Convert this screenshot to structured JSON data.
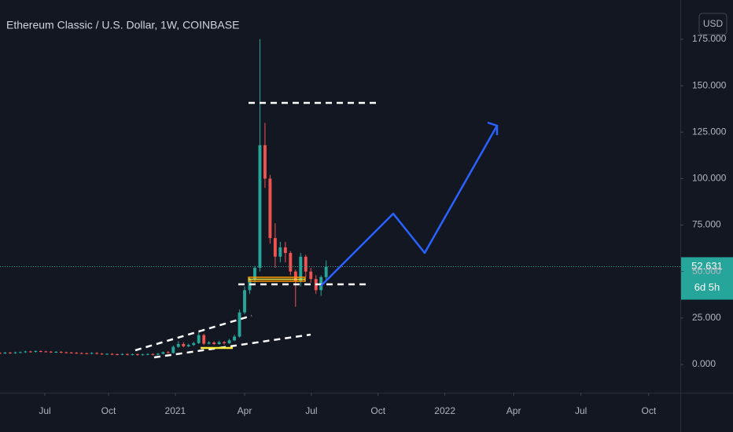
{
  "chart_data": {
    "type": "candlestick",
    "title": "Ethereum Classic / U.S. Dollar, 1W, COINBASE",
    "currency": "USD",
    "countdown": "6d 5h",
    "up_color": "#26a69a",
    "down_color": "#ef5350",
    "x": [
      0,
      1,
      2,
      3,
      4,
      5,
      6,
      7,
      8,
      9,
      10,
      11,
      12,
      13,
      14,
      15,
      16,
      17,
      18,
      19,
      20,
      21,
      22,
      23,
      24,
      25,
      26,
      27,
      28,
      29,
      30,
      31,
      32,
      33,
      34,
      35,
      36,
      37,
      38,
      39,
      40,
      41,
      42,
      43,
      44,
      45,
      46,
      47,
      48,
      49,
      50,
      51,
      52,
      53,
      54,
      55,
      56,
      57,
      58,
      59,
      60,
      61,
      62,
      63,
      64
    ],
    "open": [
      6.2,
      6.0,
      6.4,
      6.1,
      6.5,
      6.6,
      7.0,
      6.8,
      7.2,
      7.0,
      6.9,
      6.6,
      6.8,
      6.5,
      6.4,
      6.3,
      6.1,
      6.0,
      5.9,
      6.2,
      5.8,
      5.6,
      5.7,
      5.5,
      5.4,
      5.6,
      5.3,
      5.5,
      5.2,
      5.4,
      5.6,
      5.3,
      5.8,
      6.6,
      6.2,
      9.5,
      11.0,
      9.8,
      10.5,
      11.5,
      15.8,
      11.2,
      11.8,
      11.0,
      12.0,
      11.4,
      13.0,
      15.0,
      28.0,
      40.0,
      46,
      52,
      118,
      100,
      68,
      58,
      63,
      60,
      50,
      45,
      58,
      50,
      46,
      40,
      47
    ],
    "high": [
      6.6,
      6.8,
      6.8,
      6.9,
      7.0,
      7.4,
      7.4,
      7.6,
      7.6,
      7.4,
      7.3,
      7.2,
      7.2,
      6.9,
      6.8,
      6.7,
      6.5,
      6.4,
      6.6,
      6.6,
      6.2,
      6.1,
      6.1,
      5.9,
      6.0,
      6.0,
      5.9,
      5.9,
      5.8,
      6.0,
      6.0,
      6.2,
      7.0,
      7.2,
      10.2,
      12.5,
      12,
      11.2,
      12.3,
      17.5,
      16.5,
      12.6,
      12.5,
      12.8,
      12.6,
      13.8,
      16,
      29.5,
      42,
      47,
      53,
      175,
      130,
      102,
      76,
      66,
      66,
      61,
      51,
      60,
      59,
      52,
      48,
      48,
      56
    ],
    "low": [
      5.6,
      5.6,
      5.7,
      5.7,
      6.1,
      6.2,
      6.4,
      6.4,
      6.6,
      6.5,
      6.2,
      6.2,
      6.1,
      6.0,
      5.9,
      5.7,
      5.6,
      5.5,
      5.5,
      5.4,
      5.2,
      5.2,
      5.1,
      5.0,
      5.0,
      4.9,
      4.9,
      4.8,
      4.8,
      5.0,
      4.9,
      4.9,
      5.4,
      5.8,
      5.8,
      9,
      9.2,
      9.3,
      10,
      11,
      10.5,
      10.8,
      10.5,
      10.6,
      10.8,
      11,
      12.5,
      14.5,
      27,
      38,
      44,
      50,
      95,
      65,
      52,
      55,
      55,
      48,
      31,
      42,
      47,
      44,
      38,
      37,
      45
    ],
    "close": [
      6.0,
      6.4,
      6.1,
      6.5,
      6.6,
      7.0,
      6.8,
      7.2,
      7.0,
      6.9,
      6.6,
      6.8,
      6.5,
      6.4,
      6.3,
      6.1,
      6.0,
      5.9,
      6.2,
      5.8,
      5.6,
      5.7,
      5.5,
      5.4,
      5.6,
      5.3,
      5.5,
      5.2,
      5.4,
      5.6,
      5.3,
      5.8,
      6.6,
      6.2,
      9.5,
      11.0,
      9.8,
      10.5,
      11.5,
      15.8,
      11.2,
      11.8,
      11.0,
      12.0,
      11.4,
      13.0,
      15.0,
      28.0,
      40.0,
      46,
      52,
      118,
      100,
      68,
      58,
      63,
      60,
      50,
      45,
      58,
      50,
      46,
      40,
      47,
      52.631
    ],
    "xlim": [
      0,
      133.5
    ],
    "xticks": [
      {
        "value": 8.8,
        "label": "Jul"
      },
      {
        "value": 21.3,
        "label": "Oct"
      },
      {
        "value": 34.4,
        "label": "2021"
      },
      {
        "value": 48,
        "label": "Apr"
      },
      {
        "value": 61.1,
        "label": "Jul"
      },
      {
        "value": 74.2,
        "label": "Oct"
      },
      {
        "value": 87.3,
        "label": "2022"
      },
      {
        "value": 100.8,
        "label": "Apr"
      },
      {
        "value": 114,
        "label": "Jul"
      },
      {
        "value": 127.3,
        "label": "Oct"
      }
    ],
    "ylim": [
      -15.2,
      196.1
    ],
    "yticks": [
      {
        "value": 0,
        "label": "0.000"
      },
      {
        "value": 25,
        "label": "25.000"
      },
      {
        "value": 50,
        "label": "50.000"
      },
      {
        "value": 75,
        "label": "75.000"
      },
      {
        "value": 100,
        "label": "100.000"
      },
      {
        "value": 125,
        "label": "125.000"
      },
      {
        "value": 150,
        "label": "150.000"
      },
      {
        "value": 175,
        "label": "175.000"
      }
    ]
  }
}
